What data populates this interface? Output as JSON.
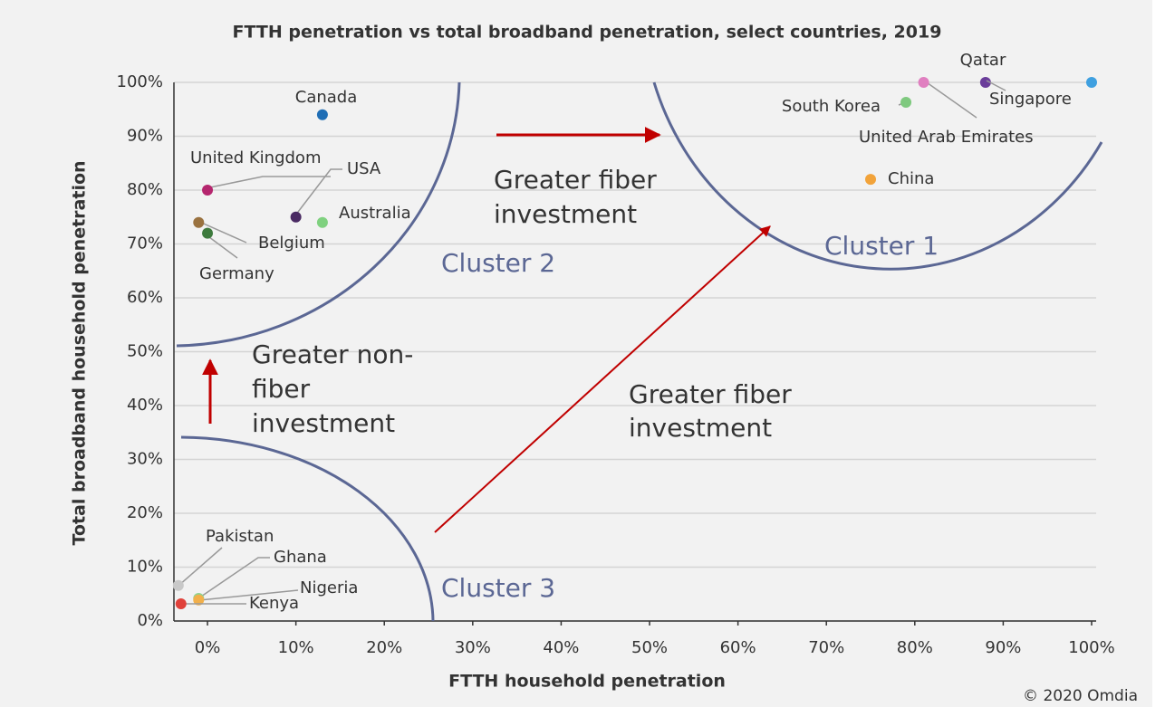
{
  "chart_data": {
    "type": "scatter",
    "title": "FTTH penetration vs total broadband penetration, select countries, 2019",
    "x_label": "FTTH household penetration",
    "y_label": "Total broadband household penetration",
    "source": "© 2020 Omdia",
    "xlim": [
      -4,
      100
    ],
    "ylim": [
      0,
      100
    ],
    "xticks": [
      {
        "value": 0,
        "label": "0%"
      },
      {
        "value": 10,
        "label": "10%"
      },
      {
        "value": 20,
        "label": "20%"
      },
      {
        "value": 30,
        "label": "30%"
      },
      {
        "value": 40,
        "label": "40%"
      },
      {
        "value": 50,
        "label": "50%"
      },
      {
        "value": 60,
        "label": "60%"
      },
      {
        "value": 70,
        "label": "70%"
      },
      {
        "value": 80,
        "label": "80%"
      },
      {
        "value": 90,
        "label": "90%"
      },
      {
        "value": 100,
        "label": "100%"
      }
    ],
    "yticks": [
      {
        "value": 0,
        "label": "0%"
      },
      {
        "value": 10,
        "label": "10%"
      },
      {
        "value": 20,
        "label": "20%"
      },
      {
        "value": 30,
        "label": "30%"
      },
      {
        "value": 40,
        "label": "40%"
      },
      {
        "value": 50,
        "label": "50%"
      },
      {
        "value": 60,
        "label": "60%"
      },
      {
        "value": 70,
        "label": "70%"
      },
      {
        "value": 80,
        "label": "80%"
      },
      {
        "value": 90,
        "label": "90%"
      },
      {
        "value": 100,
        "label": "100%"
      }
    ],
    "grid": true,
    "points": [
      {
        "name": "Canada",
        "x": 13,
        "y": 94,
        "color": "#1f6eb5"
      },
      {
        "name": "United Kingdom",
        "x": 0,
        "y": 80,
        "color": "#b5266e"
      },
      {
        "name": "USA",
        "x": 10,
        "y": 75,
        "color": "#4a2a63"
      },
      {
        "name": "Australia",
        "x": 13,
        "y": 74,
        "color": "#7fd17f"
      },
      {
        "name": "Belgium",
        "x": -1,
        "y": 74,
        "color": "#9a7240"
      },
      {
        "name": "Germany",
        "x": 0,
        "y": 72,
        "color": "#3d7a3d"
      },
      {
        "name": "Pakistan",
        "x": -3.3,
        "y": 6.6,
        "color": "#c8c8c8"
      },
      {
        "name": "Ghana",
        "x": -1,
        "y": 4.2,
        "color": "#8fd28f"
      },
      {
        "name": "Nigeria",
        "x": -1,
        "y": 3.9,
        "color": "#f2b04a"
      },
      {
        "name": "Kenya",
        "x": -3,
        "y": 3.2,
        "color": "#e0413a"
      },
      {
        "name": "Qatar",
        "x": 88,
        "y": 100,
        "color": "#6a3d9a"
      },
      {
        "name": "Singapore",
        "x": 100,
        "y": 100,
        "color": "#3fa0e0"
      },
      {
        "name": "United Arab Emirates",
        "x": 81,
        "y": 100,
        "color": "#e07fc0"
      },
      {
        "name": "South Korea",
        "x": 79,
        "y": 96.3,
        "color": "#7fc97f"
      },
      {
        "name": "China",
        "x": 75,
        "y": 82,
        "color": "#f2a33a"
      }
    ],
    "annotations": [
      {
        "lines": [
          "Greater fiber",
          "investment"
        ]
      },
      {
        "lines": [
          "Greater non-",
          "fiber",
          "investment"
        ]
      },
      {
        "lines": [
          "Greater fiber",
          "investment"
        ]
      },
      {
        "lines": [
          "Cluster 2"
        ]
      },
      {
        "lines": [
          "Cluster 1"
        ]
      },
      {
        "lines": [
          "Cluster 3"
        ]
      }
    ]
  }
}
